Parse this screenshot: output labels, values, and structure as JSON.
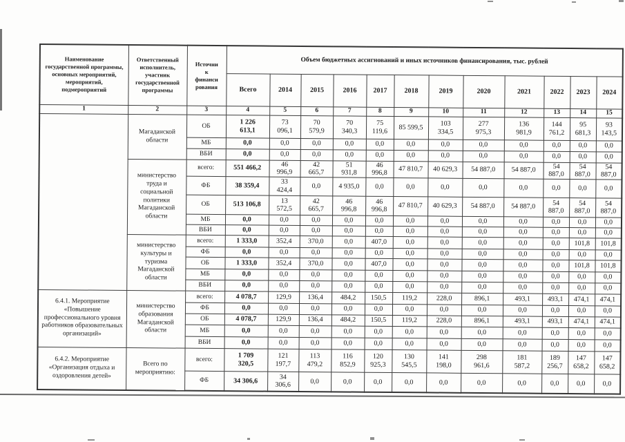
{
  "document": {
    "header": {
      "col_program": "Наименование государственной программы, основных мероприятий, мероприятий, подмероприятий",
      "col_executor": "Ответственный исполнитель, участник государственной программы",
      "col_source": "Источни\nк\nфинанси\nрования",
      "volume_title": "Объем бюджетных ассигнований и иных источников финансирования, тыс. рублей",
      "total_label": "Всего",
      "years": [
        "2014",
        "2015",
        "2016",
        "2017",
        "2018",
        "2019",
        "2020",
        "2021",
        "2022",
        "2023",
        "2024"
      ],
      "column_numbers": [
        "1",
        "2",
        "3",
        "4",
        "5",
        "6",
        "7",
        "8",
        "9",
        "10",
        "11",
        "12",
        "13",
        "14",
        "15"
      ]
    },
    "program_cells": [
      {
        "label": "",
        "rows": 13
      },
      {
        "label": "6.4.1. Мероприятие «Повышение профессионального уровня работников образовательных организаций»",
        "rows": 5
      },
      {
        "label": "6.4.2. Мероприятие «Организация отдыха и оздоровления детей»",
        "rows": 2
      }
    ],
    "groups": [
      {
        "executor": "Магаданской области",
        "rows": [
          {
            "source": "ОБ",
            "values": [
              "1 226\n613,1",
              "73\n096,1",
              "70\n579,9",
              "70\n340,3",
              "75\n119,6",
              "85 599,5",
              "103\n334,5",
              "277\n975,3",
              "136\n981,9",
              "144\n761,2",
              "95\n681,3",
              "93\n143,5"
            ]
          },
          {
            "source": "МБ",
            "values": [
              "0,0",
              "0,0",
              "0,0",
              "0,0",
              "0,0",
              "0,0",
              "0,0",
              "0,0",
              "0,0",
              "0,0",
              "0,0",
              "0,0"
            ]
          },
          {
            "source": "ВБИ",
            "values": [
              "0,0",
              "0,0",
              "0,0",
              "0,0",
              "0,0",
              "0,0",
              "0,0",
              "0,0",
              "0,0",
              "0,0",
              "0,0",
              "0,0"
            ]
          }
        ]
      },
      {
        "executor": "министерство труда и социальной политики Магаданской области",
        "rows": [
          {
            "source": "всего:",
            "values": [
              "551 466,2",
              "46\n996,9",
              "42\n665,7",
              "51\n931,8",
              "46\n996,8",
              "47 810,7",
              "40 629,3",
              "54 887,0",
              "54 887,0",
              "54\n887,0",
              "54\n887,0",
              "54\n887,0"
            ]
          },
          {
            "source": "ФБ",
            "values": [
              "38 359,4",
              "33\n424,4",
              "0,0",
              "4 935,0",
              "0,0",
              "0,0",
              "0,0",
              "0,0",
              "0,0",
              "0,0",
              "0,0",
              "0,0"
            ]
          },
          {
            "source": "ОБ",
            "values": [
              "513 106,8",
              "13\n572,5",
              "42\n665,7",
              "46\n996,8",
              "46\n996,8",
              "47 810,7",
              "40 629,3",
              "54 887,0",
              "54 887,0",
              "54\n887,0",
              "54\n887,0",
              "54\n887,0"
            ]
          },
          {
            "source": "МБ",
            "values": [
              "0,0",
              "0,0",
              "0,0",
              "0,0",
              "0,0",
              "0,0",
              "0,0",
              "0,0",
              "0,0",
              "0,0",
              "0,0",
              "0,0"
            ]
          },
          {
            "source": "ВБИ",
            "values": [
              "0,0",
              "0,0",
              "0,0",
              "0,0",
              "0,0",
              "0,0",
              "0,0",
              "0,0",
              "0,0",
              "0,0",
              "0,0",
              "0,0"
            ]
          }
        ]
      },
      {
        "executor": "министерство культуры и туризма Магаданской области",
        "rows": [
          {
            "source": "всего:",
            "values": [
              "1 333,0",
              "352,4",
              "370,0",
              "0,0",
              "407,0",
              "0,0",
              "0,0",
              "0,0",
              "0,0",
              "0,0",
              "101,8",
              "101,8"
            ]
          },
          {
            "source": "ФБ",
            "values": [
              "0,0",
              "0,0",
              "0,0",
              "0,0",
              "0,0",
              "0,0",
              "0,0",
              "0,0",
              "0,0",
              "0,0",
              "0,0",
              "0,0"
            ]
          },
          {
            "source": "ОБ",
            "values": [
              "1 333,0",
              "352,4",
              "370,0",
              "0,0",
              "407,0",
              "0,0",
              "0,0",
              "0,0",
              "0,0",
              "0,0",
              "101,8",
              "101,8"
            ]
          },
          {
            "source": "МБ",
            "values": [
              "0,0",
              "0,0",
              "0,0",
              "0,0",
              "0,0",
              "0,0",
              "0,0",
              "0,0",
              "0,0",
              "0,0",
              "0,0",
              "0,0"
            ]
          },
          {
            "source": "ВБИ",
            "values": [
              "0,0",
              "0,0",
              "0,0",
              "0,0",
              "0,0",
              "0,0",
              "0,0",
              "0,0",
              "0,0",
              "0,0",
              "0,0",
              "0,0"
            ]
          }
        ]
      },
      {
        "executor": "министерство образования Магаданской области",
        "rows": [
          {
            "source": "всего:",
            "values": [
              "4 078,7",
              "129,9",
              "136,4",
              "484,2",
              "150,5",
              "119,2",
              "228,0",
              "896,1",
              "493,1",
              "493,1",
              "474,1",
              "474,1"
            ]
          },
          {
            "source": "ФБ",
            "values": [
              "0,0",
              "0,0",
              "0,0",
              "0,0",
              "0,0",
              "0,0",
              "0,0",
              "0,0",
              "0,0",
              "0,0",
              "0,0",
              "0,0"
            ]
          },
          {
            "source": "ОБ",
            "values": [
              "4 078,7",
              "129,9",
              "136,4",
              "484,2",
              "150,5",
              "119,2",
              "228,0",
              "896,1",
              "493,1",
              "493,1",
              "474,1",
              "474,1"
            ]
          },
          {
            "source": "МБ",
            "values": [
              "0,0",
              "0,0",
              "0,0",
              "0,0",
              "0,0",
              "0,0",
              "0,0",
              "0,0",
              "0,0",
              "0,0",
              "0,0",
              "0,0"
            ]
          },
          {
            "source": "ВБИ",
            "values": [
              "0,0",
              "0,0",
              "0,0",
              "0,0",
              "0,0",
              "0,0",
              "0,0",
              "0,0",
              "0,0",
              "0,0",
              "0,0",
              "0,0"
            ]
          }
        ]
      },
      {
        "executor": "Всего по мероприятию:",
        "rows": [
          {
            "source": "всего:",
            "values": [
              "1 709\n320,5",
              "121\n197,7",
              "113\n479,2",
              "116\n852,9",
              "120\n925,3",
              "130\n545,5",
              "141\n198,0",
              "298\n961,6",
              "181\n587,2",
              "189\n256,7",
              "147\n658,2",
              "147\n658,2"
            ]
          },
          {
            "source": "ФБ",
            "values": [
              "34 306,6",
              "34\n306,6",
              "0,0",
              "0,0",
              "0,0",
              "0,0",
              "0,0",
              "0,0",
              "0,0",
              "0,0",
              "0,0",
              "0,0"
            ]
          }
        ]
      }
    ]
  }
}
